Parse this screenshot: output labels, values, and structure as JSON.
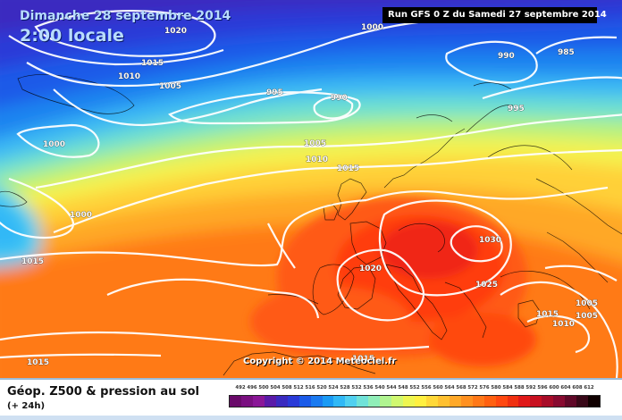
{
  "header": {
    "date_line": "Dimanche 28 septembre 2014",
    "time_line": "2:00 locale",
    "run_info": "Run GFS 0 Z du Samedi 27 septembre 2014"
  },
  "watermark": "Copyright © 2014 Meteociel.fr",
  "footer": {
    "product_title": "Géop. Z500 & pression au sol",
    "forecast_offset": "(+ 24h)"
  },
  "legend": {
    "tick_labels": [
      "492",
      "496",
      "500",
      "504",
      "508",
      "512",
      "516",
      "520",
      "524",
      "528",
      "532",
      "536",
      "540",
      "544",
      "548",
      "552",
      "556",
      "560",
      "564",
      "568",
      "572",
      "576",
      "580",
      "584",
      "588",
      "592",
      "596",
      "600",
      "604",
      "608",
      "612"
    ],
    "colors": [
      "#6a0a6a",
      "#7a0f80",
      "#8a1697",
      "#5a1aa8",
      "#3a2ac0",
      "#2a3ad8",
      "#1a5ae8",
      "#1a7af0",
      "#1a9af4",
      "#30b8f6",
      "#50d0f0",
      "#70e2d8",
      "#90eeb8",
      "#b0f490",
      "#d0f870",
      "#eef650",
      "#fff040",
      "#ffd838",
      "#ffc030",
      "#ffa828",
      "#ff9020",
      "#ff7818",
      "#ff6010",
      "#ff4810",
      "#f03010",
      "#e01818",
      "#c81020",
      "#a80c28",
      "#880a30",
      "#600828",
      "#380818",
      "#100000"
    ]
  },
  "map": {
    "isobar_labels": [
      {
        "text": "1020"
      },
      {
        "text": "1015"
      },
      {
        "text": "1010"
      },
      {
        "text": "1005"
      },
      {
        "text": "1000"
      },
      {
        "text": "995"
      },
      {
        "text": "990"
      },
      {
        "text": "990"
      },
      {
        "text": "985"
      },
      {
        "text": "995"
      },
      {
        "text": "1000"
      },
      {
        "text": "1005"
      },
      {
        "text": "1010"
      },
      {
        "text": "1015"
      },
      {
        "text": "1000"
      },
      {
        "text": "1015"
      },
      {
        "text": "1020"
      },
      {
        "text": "1030"
      },
      {
        "text": "1025"
      },
      {
        "text": "1015"
      },
      {
        "text": "1010"
      },
      {
        "text": "1005"
      },
      {
        "text": "1005"
      },
      {
        "text": "1015"
      },
      {
        "text": "1015"
      }
    ]
  }
}
